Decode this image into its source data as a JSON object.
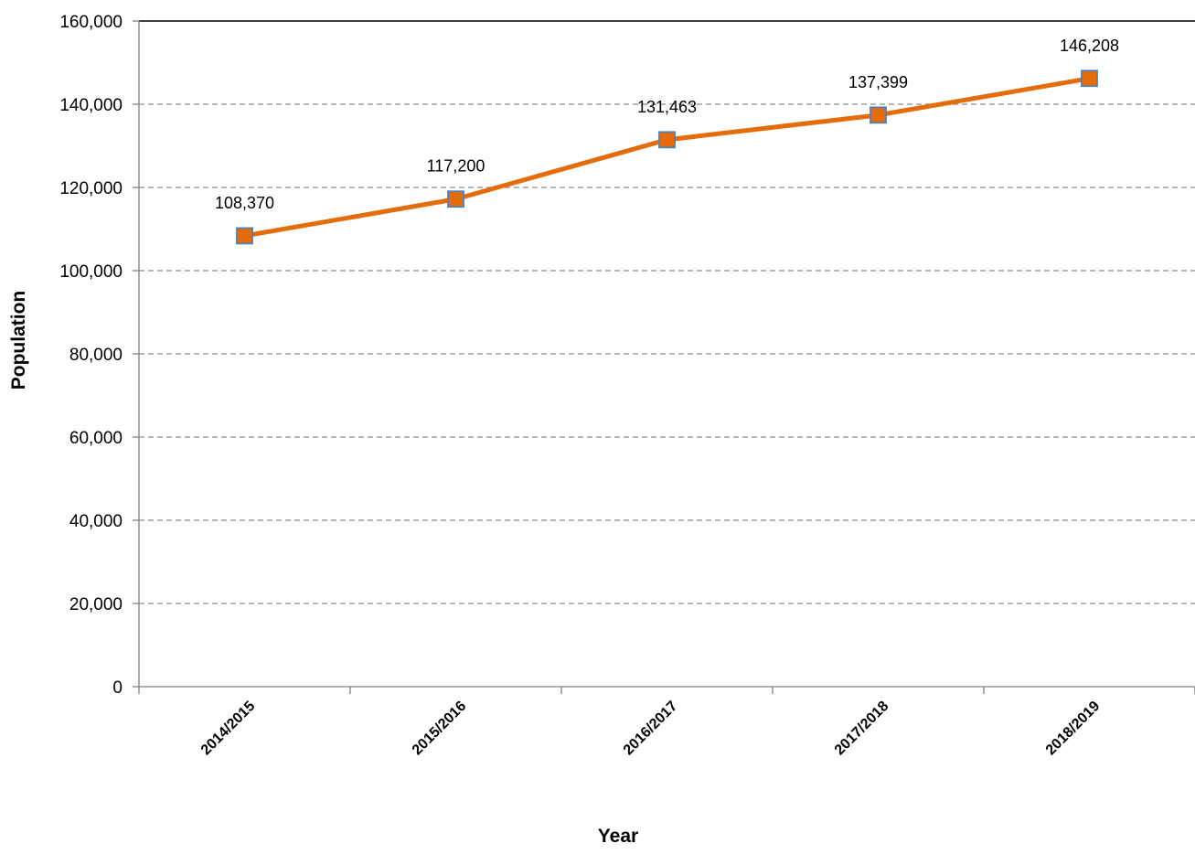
{
  "chart_data": {
    "type": "line",
    "categories": [
      "2014/2015",
      "2015/2016",
      "2016/2017",
      "2017/2018",
      "2018/2019"
    ],
    "series": [
      {
        "values": [
          108370,
          117200,
          131463,
          137399,
          146208
        ],
        "labels": [
          "108,370",
          "117,200",
          "131,463",
          "137,399",
          "146,208"
        ],
        "color": "#E46C0A",
        "marker": "square",
        "marker_fill": "#E46C0A",
        "marker_edge": "#4F81BD"
      }
    ],
    "xlabel": "Year",
    "ylabel": "Population",
    "ylim": [
      0,
      160000
    ],
    "yticks": [
      0,
      20000,
      40000,
      60000,
      80000,
      100000,
      120000,
      140000,
      160000
    ],
    "ytick_labels": [
      "0",
      "20,000",
      "40,000",
      "60,000",
      "80,000",
      "100,000",
      "120,000",
      "140,000",
      "160,000"
    ],
    "grid": true,
    "grid_style": "dashed",
    "legend": "none"
  }
}
